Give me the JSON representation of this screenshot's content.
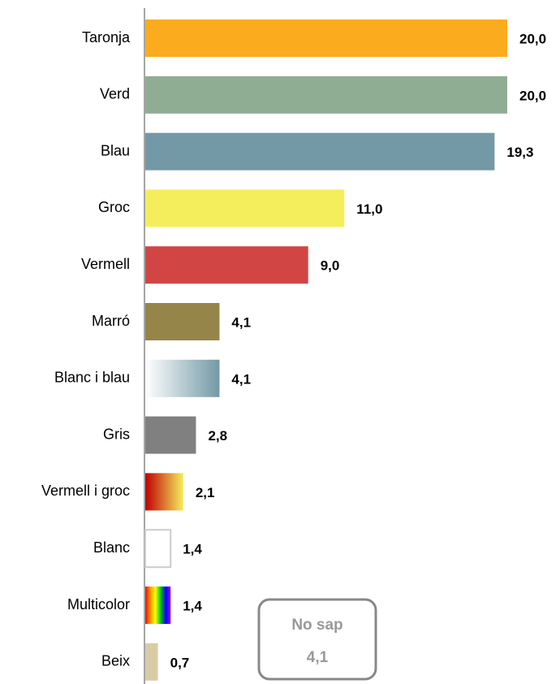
{
  "chart_data": {
    "type": "bar",
    "orientation": "horizontal",
    "categories": [
      "Taronja",
      "Verd",
      "Blau",
      "Groc",
      "Vermell",
      "Marró",
      "Blanc i blau",
      "Gris",
      "Vermell i groc",
      "Blanc",
      "Multicolor",
      "Beix"
    ],
    "values": [
      20.0,
      20.0,
      19.3,
      11.0,
      9.0,
      4.1,
      4.1,
      2.8,
      2.1,
      1.4,
      1.4,
      0.7
    ],
    "value_labels": [
      "20,0",
      "20,0",
      "19,3",
      "11,0",
      "9,0",
      "4,1",
      "4,1",
      "2,8",
      "2,1",
      "1,4",
      "1,4",
      "0,7"
    ],
    "colors": [
      "#fbab1e",
      "#8fad93",
      "#7399a6",
      "#f4ee5d",
      "#d24545",
      "#968549",
      [
        "#ffffff",
        "#7399a6"
      ],
      "#808080",
      [
        "#c00000",
        "#f4ee5d"
      ],
      "#ffffff",
      [
        "#ff0000",
        "#ff9900",
        "#ffff00",
        "#00cc00",
        "#0000ff",
        "#8b00ff"
      ],
      "#d8cca6"
    ],
    "annotation": {
      "label": "No sap",
      "value": 4.1,
      "value_label": "4,1"
    }
  }
}
